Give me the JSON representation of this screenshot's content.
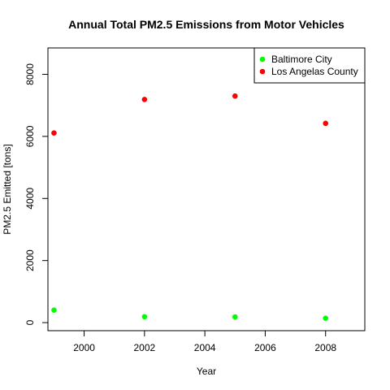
{
  "chart_data": {
    "type": "scatter",
    "title": "Annual Total PM2.5 Emissions from Motor Vehicles",
    "xlabel": "Year",
    "ylabel": "PM2.5 Emitted [tons]",
    "xlim": [
      1998.8,
      2009.3
    ],
    "ylim": [
      -260,
      8850
    ],
    "x_ticks": [
      2000,
      2002,
      2004,
      2006,
      2008
    ],
    "y_ticks": [
      0,
      2000,
      4000,
      6000,
      8000
    ],
    "grid": false,
    "legend_position": "top-right",
    "x": [
      1999,
      2002,
      2005,
      2008
    ],
    "series": [
      {
        "name": "Baltimore City",
        "color": "#00ff00",
        "values": [
          403,
          190,
          185,
          140
        ]
      },
      {
        "name": "Los Angelas County",
        "color": "#ff0000",
        "values": [
          6110,
          7190,
          7300,
          6420
        ]
      }
    ]
  }
}
